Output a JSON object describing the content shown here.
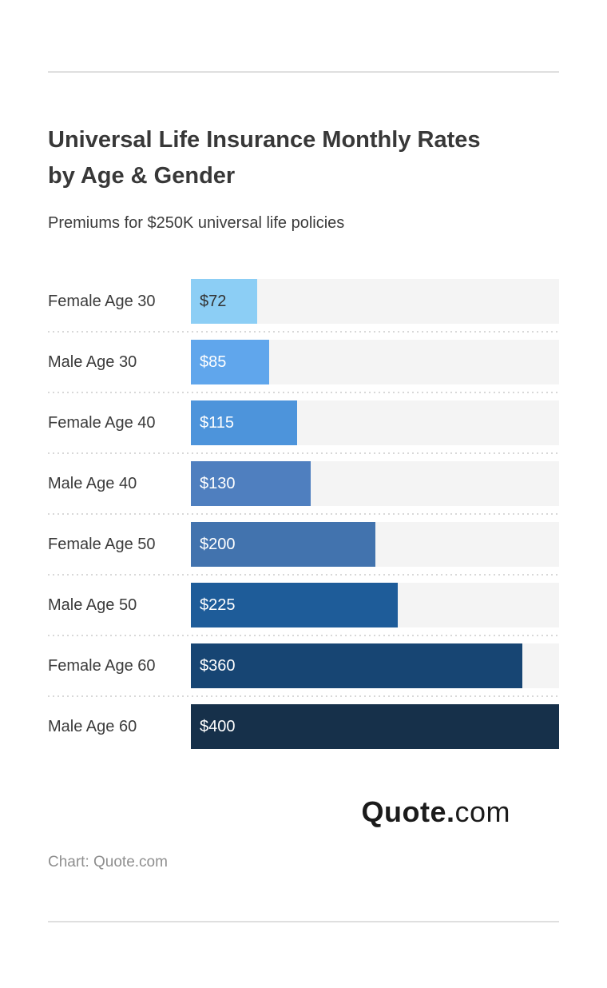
{
  "chart_data": {
    "type": "bar",
    "orientation": "horizontal",
    "title": "Universal Life Insurance Monthly Rates by Age & Gender",
    "title_lines": [
      "Universal Life Insurance Monthly Rates",
      "by Age & Gender"
    ],
    "subtitle": "Premiums for $250K universal life policies",
    "categories": [
      "Female Age 30",
      "Male Age 30",
      "Female Age 40",
      "Male Age 40",
      "Female Age 50",
      "Male Age 50",
      "Female Age 60",
      "Male Age 60"
    ],
    "values": [
      72,
      85,
      115,
      130,
      200,
      225,
      360,
      400
    ],
    "value_labels": [
      "$72",
      "$85",
      "$115",
      "$130",
      "$200",
      "$225",
      "$360",
      "$400"
    ],
    "xlim": [
      0,
      400
    ],
    "grid": false,
    "legend": false,
    "bar_colors": [
      "#8CCEF5",
      "#60A6EC",
      "#4D94DB",
      "#4F7FBF",
      "#4273AE",
      "#1E5C99",
      "#174573",
      "#16304A"
    ],
    "value_text_colors": [
      "#333333",
      "#ffffff",
      "#ffffff",
      "#ffffff",
      "#ffffff",
      "#ffffff",
      "#ffffff",
      "#ffffff"
    ],
    "track_color": "#f4f4f4"
  },
  "footer": {
    "logo_primary": "Quote.",
    "logo_suffix": "com",
    "credit": "Chart: Quote.com"
  },
  "colors": {
    "title_text": "#383838",
    "label_text": "#3b3b3b",
    "credit_text": "#8f8f8f",
    "divider": "#dfdfdf",
    "separator_dots": "#d8d8d8"
  }
}
